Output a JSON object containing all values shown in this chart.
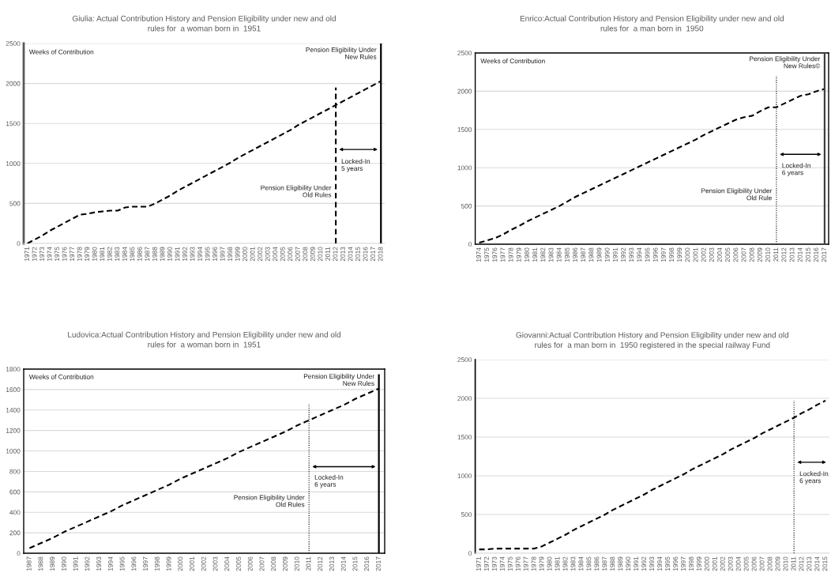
{
  "chart_data": [
    {
      "type": "line",
      "title": "Giulia: Actual Contribution History and Pension Eligibility under new and old\nrules for  a woman born in  1951",
      "ylabel": "Weeks of Contribution",
      "x": [
        1971,
        1972,
        1973,
        1974,
        1975,
        1976,
        1977,
        1978,
        1979,
        1980,
        1981,
        1982,
        1983,
        1984,
        1985,
        1986,
        1987,
        1988,
        1989,
        1990,
        1991,
        1992,
        1993,
        1994,
        1995,
        1996,
        1997,
        1998,
        1999,
        2000,
        2001,
        2002,
        2003,
        2004,
        2005,
        2006,
        2007,
        2008,
        2009,
        2010,
        2011,
        2012,
        2013,
        2014,
        2015,
        2016,
        2017,
        2018
      ],
      "xlim": [
        1970.5,
        2018.5
      ],
      "xticks": [
        1971,
        1972,
        1973,
        1974,
        1975,
        1976,
        1977,
        1978,
        1979,
        1980,
        1981,
        1982,
        1983,
        1984,
        1985,
        1986,
        1987,
        1988,
        1989,
        1990,
        1991,
        1992,
        1993,
        1994,
        1995,
        1996,
        1997,
        1998,
        1999,
        2000,
        2001,
        2002,
        2003,
        2004,
        2005,
        2006,
        2007,
        2008,
        2009,
        2010,
        2011,
        2012,
        2013,
        2014,
        2015,
        2016,
        2017,
        2018
      ],
      "series": [
        {
          "color": "#000000",
          "line_style": "dashed",
          "values": [
            0,
            50,
            100,
            160,
            210,
            260,
            310,
            360,
            370,
            390,
            400,
            410,
            410,
            450,
            460,
            460,
            460,
            500,
            550,
            600,
            660,
            710,
            760,
            810,
            860,
            910,
            960,
            1010,
            1070,
            1120,
            1170,
            1220,
            1270,
            1320,
            1370,
            1420,
            1480,
            1530,
            1580,
            1630,
            1680,
            1730,
            1780,
            1830,
            1880,
            1930,
            1980,
            2030
          ]
        },
        {
          "color": "#000000",
          "line_style": "dashed",
          "x": [
            2012,
            2012
          ],
          "values": [
            0,
            1950
          ]
        },
        {
          "color": "#000000",
          "line_style": "solid",
          "x": [
            2018,
            2018
          ],
          "values": [
            0,
            2500
          ]
        }
      ],
      "ylim": [
        0,
        2500
      ],
      "yticks": [
        0,
        500,
        1000,
        1500,
        2000,
        2500
      ],
      "grid": "y",
      "annotations": [
        {
          "text": "Pension Eligibility Under\nOld Rules",
          "x": 2012,
          "y": 645
        },
        {
          "text": "Pension Eligibility Under\nNew Rules",
          "x": 2018,
          "y": 2370
        },
        "Locked-In\n5 years"
      ]
    },
    {
      "type": "line",
      "title": "Enrico:Actual Contribution History and Pension Eligibility under new and old\nrules for  a man born in  1950",
      "ylabel": "Weeks of Contribution",
      "x": [
        1974,
        1975,
        1976,
        1977,
        1978,
        1979,
        1980,
        1981,
        1982,
        1983,
        1984,
        1985,
        1986,
        1987,
        1988,
        1989,
        1990,
        1991,
        1992,
        1993,
        1994,
        1995,
        1996,
        1997,
        1998,
        1999,
        2000,
        2001,
        2002,
        2003,
        2004,
        2005,
        2006,
        2007,
        2008,
        2009,
        2010,
        2011,
        2012,
        2013,
        2014,
        2015,
        2016,
        2017
      ],
      "xlim": [
        1973.5,
        2017.5
      ],
      "xticks": [
        1974,
        1975,
        1976,
        1977,
        1978,
        1979,
        1980,
        1981,
        1982,
        1983,
        1984,
        1985,
        1986,
        1987,
        1988,
        1989,
        1990,
        1991,
        1992,
        1993,
        1994,
        1995,
        1996,
        1997,
        1998,
        1999,
        2000,
        2001,
        2002,
        2003,
        2004,
        2005,
        2006,
        2007,
        2008,
        2009,
        2010,
        2011,
        2012,
        2013,
        2014,
        2015,
        2016,
        2017
      ],
      "series": [
        {
          "color": "#000000",
          "line_style": "dashed",
          "values": [
            20,
            50,
            80,
            130,
            190,
            240,
            300,
            350,
            400,
            450,
            500,
            560,
            620,
            670,
            720,
            770,
            820,
            870,
            920,
            970,
            1020,
            1070,
            1120,
            1170,
            1220,
            1270,
            1320,
            1370,
            1430,
            1480,
            1530,
            1580,
            1630,
            1660,
            1680,
            1740,
            1790,
            1790,
            1840,
            1890,
            1940,
            1960,
            2000,
            2030
          ]
        },
        {
          "color": "#000000",
          "line_style": "dotted",
          "x": [
            2011,
            2011
          ],
          "values": [
            0,
            2200
          ]
        },
        {
          "color": "#404040",
          "line_style": "solid",
          "x": [
            2017,
            2017
          ],
          "values": [
            0,
            2500
          ]
        }
      ],
      "ylim": [
        0,
        2500
      ],
      "yticks": [
        0,
        500,
        1000,
        1500,
        2000,
        2500
      ],
      "grid": "y",
      "annotations": [
        {
          "text": "Pension Eligibility Under\nOld Rule",
          "x": 2011,
          "y": 645
        },
        {
          "text": "Pension Eligibility Under\nNew Rules©",
          "x": 2017,
          "y": 2370
        },
        "Locked-In\n6 years"
      ]
    },
    {
      "type": "line",
      "title": "Ludovica:Actual Contribution History and Pension Eligibility under new and old\nrules for  a woman born in  1951",
      "ylabel": "Weeks of Contribution",
      "x": [
        1987,
        1988,
        1989,
        1990,
        1991,
        1992,
        1993,
        1994,
        1995,
        1996,
        1997,
        1998,
        1999,
        2000,
        2001,
        2002,
        2003,
        2004,
        2005,
        2006,
        2007,
        2008,
        2009,
        2010,
        2011,
        2012,
        2013,
        2014,
        2015,
        2016,
        2017
      ],
      "xlim": [
        1986.5,
        2017.5
      ],
      "xticks": [
        1987,
        1988,
        1989,
        1990,
        1991,
        1992,
        1993,
        1994,
        1995,
        1996,
        1997,
        1998,
        1999,
        2000,
        2001,
        2002,
        2003,
        2004,
        2005,
        2006,
        2007,
        2008,
        2009,
        2010,
        2011,
        2012,
        2013,
        2014,
        2015,
        2016,
        2017
      ],
      "series": [
        {
          "color": "#000000",
          "line_style": "dashed",
          "values": [
            50,
            100,
            150,
            210,
            260,
            310,
            360,
            410,
            470,
            520,
            570,
            620,
            670,
            730,
            780,
            830,
            880,
            930,
            990,
            1040,
            1090,
            1140,
            1190,
            1250,
            1300,
            1350,
            1400,
            1450,
            1510,
            1560,
            1610
          ]
        },
        {
          "color": "#000000",
          "line_style": "dotted",
          "x": [
            2011,
            2011
          ],
          "values": [
            0,
            1460
          ]
        },
        {
          "color": "#000000",
          "line_style": "solid",
          "x": [
            2017,
            2017
          ],
          "values": [
            0,
            1750
          ]
        }
      ],
      "ylim": [
        0,
        1800
      ],
      "yticks": [
        0,
        200,
        400,
        600,
        800,
        1000,
        1200,
        1400,
        1600,
        1800
      ],
      "grid": "y",
      "annotations": [
        {
          "text": "Pension Eligibility Under\nOld Rules",
          "x": 2011,
          "y": 505
        },
        {
          "text": "Pension Eligibility Under\nNew Rules",
          "x": 2017,
          "y": 1690
        },
        "Locked-In\n6 years"
      ]
    },
    {
      "type": "line",
      "title": "Giovanni:Actual Contribution History and Pension Eligibility under new and old\nrules for  a man born in  1950 registered in the special railway Fund",
      "x": [
        1971,
        1972,
        1973,
        1974,
        1975,
        1976,
        1977,
        1978,
        1979,
        1980,
        1981,
        1982,
        1983,
        1984,
        1985,
        1986,
        1987,
        1988,
        1989,
        1990,
        1991,
        1992,
        1993,
        1994,
        1995,
        1996,
        1997,
        1998,
        1999,
        2000,
        2001,
        2002,
        2003,
        2004,
        2005,
        2006,
        2007,
        2008,
        2009,
        2010,
        2011,
        2012,
        2013,
        2014,
        2015
      ],
      "xlim": [
        1970.5,
        2015.5
      ],
      "xticks": [
        1971,
        1972,
        1973,
        1974,
        1975,
        1976,
        1977,
        1978,
        1979,
        1980,
        1981,
        1982,
        1983,
        1984,
        1985,
        1986,
        1987,
        1988,
        1989,
        1990,
        1991,
        1992,
        1993,
        1994,
        1995,
        1996,
        1997,
        1998,
        1999,
        2000,
        2001,
        2002,
        2003,
        2004,
        2005,
        2006,
        2007,
        2008,
        2009,
        2010,
        2011,
        2012,
        2013,
        2014,
        2015
      ],
      "series": [
        {
          "color": "#000000",
          "line_style": "dashed",
          "values": [
            50,
            50,
            60,
            60,
            60,
            60,
            60,
            60,
            90,
            140,
            190,
            240,
            300,
            350,
            400,
            450,
            500,
            560,
            610,
            660,
            710,
            760,
            820,
            870,
            920,
            970,
            1020,
            1080,
            1130,
            1180,
            1230,
            1280,
            1340,
            1390,
            1440,
            1490,
            1550,
            1600,
            1650,
            1700,
            1750,
            1810,
            1860,
            1920,
            1970
          ]
        },
        {
          "color": "#000000",
          "line_style": "dotted",
          "x": [
            2011,
            2011
          ],
          "values": [
            0,
            1970
          ]
        }
      ],
      "ylim": [
        0,
        2500
      ],
      "yticks": [
        0,
        500,
        1000,
        1500,
        2000,
        2500
      ],
      "grid": "y",
      "annotations": [
        "Locked-In\n6 years"
      ]
    }
  ]
}
